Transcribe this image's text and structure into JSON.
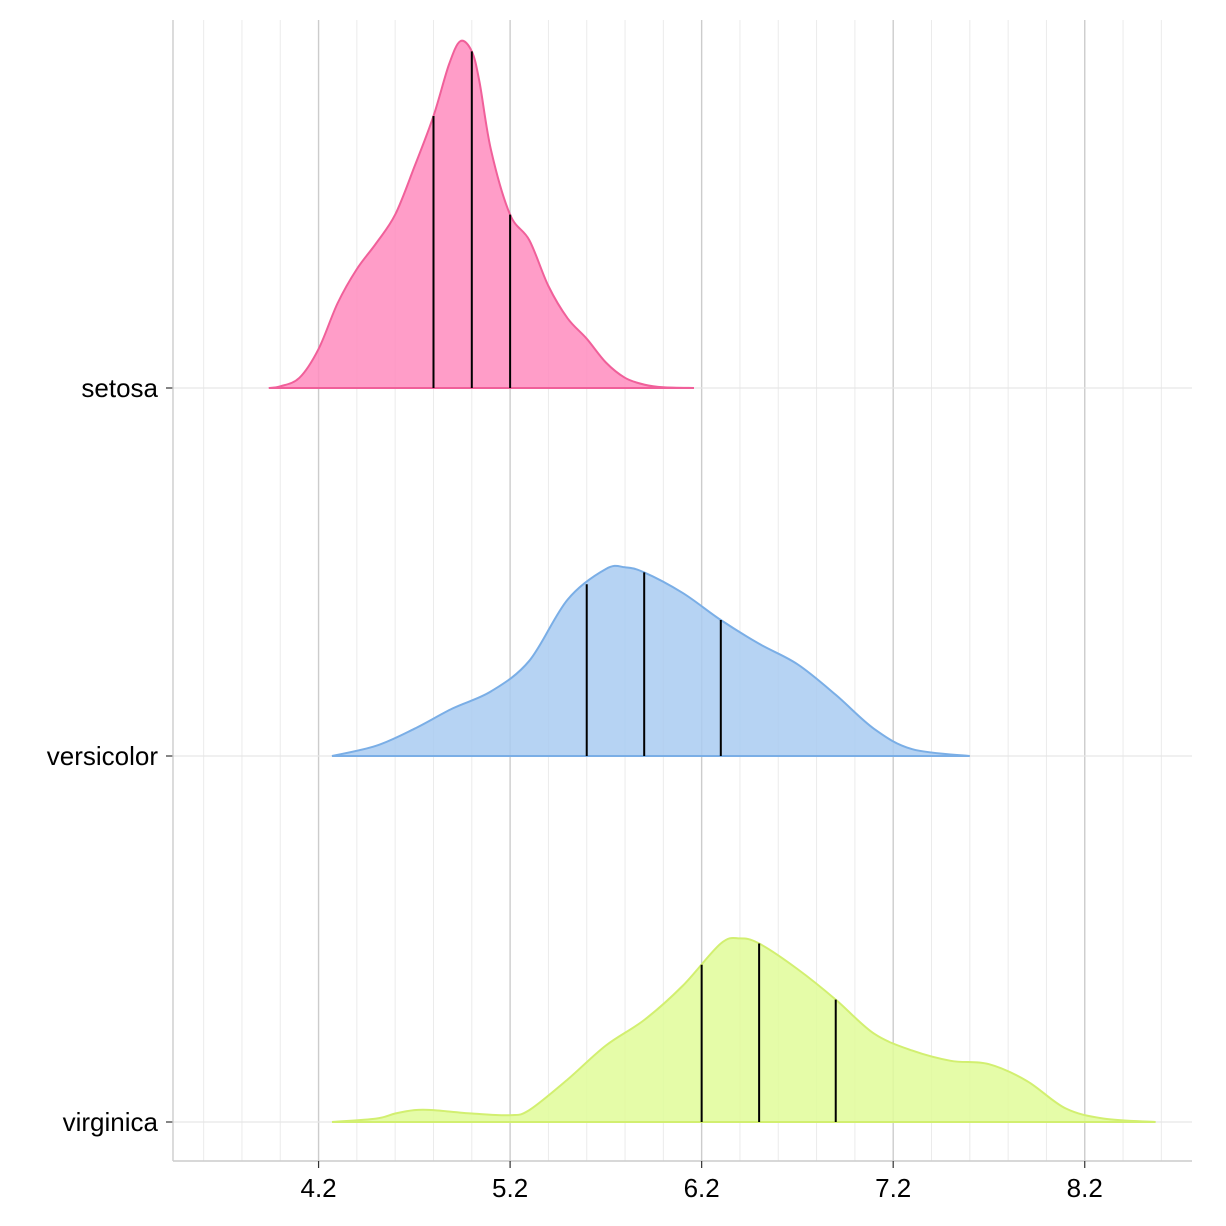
{
  "chart_data": {
    "type": "area",
    "subtype": "ridgeline-density",
    "title": "",
    "xlabel": "",
    "ylabel": "",
    "xlim": [
      3.44,
      8.76
    ],
    "x_ticks": [
      "4.2",
      "5.2",
      "6.2",
      "7.2",
      "8.2"
    ],
    "x_tick_values": [
      4.2,
      5.2,
      6.2,
      7.2,
      8.2
    ],
    "grid": true,
    "categories": [
      "setosa",
      "versicolor",
      "virginica"
    ],
    "series": [
      {
        "name": "setosa",
        "color": "#ff8cbe",
        "stroke": "#f0609a",
        "quantiles": [
          4.8,
          5.0,
          5.2
        ],
        "x": [
          3.94,
          4.0,
          4.1,
          4.2,
          4.3,
          4.4,
          4.5,
          4.6,
          4.7,
          4.8,
          4.88,
          4.94,
          5.0,
          5.04,
          5.1,
          5.2,
          5.3,
          5.4,
          5.5,
          5.6,
          5.7,
          5.8,
          5.9,
          6.0,
          6.16
        ],
        "density": [
          0.0,
          0.01,
          0.06,
          0.23,
          0.5,
          0.7,
          0.85,
          1.02,
          1.3,
          1.6,
          1.9,
          2.04,
          1.98,
          1.8,
          1.4,
          1.02,
          0.87,
          0.6,
          0.41,
          0.29,
          0.15,
          0.06,
          0.02,
          0.004,
          0.0
        ]
      },
      {
        "name": "versicolor",
        "color": "#a9cbf1",
        "stroke": "#7aaee6",
        "quantiles": [
          5.6,
          5.9,
          6.3
        ],
        "x": [
          4.27,
          4.5,
          4.7,
          4.9,
          5.1,
          5.3,
          5.5,
          5.7,
          5.8,
          5.9,
          6.1,
          6.3,
          6.5,
          6.7,
          6.9,
          7.1,
          7.3,
          7.6
        ],
        "density": [
          0.0,
          0.06,
          0.16,
          0.28,
          0.38,
          0.56,
          0.92,
          1.1,
          1.11,
          1.08,
          0.96,
          0.8,
          0.66,
          0.54,
          0.36,
          0.16,
          0.04,
          0.0
        ]
      },
      {
        "name": "virginica",
        "color": "#e1fc99",
        "stroke": "#d2ef70",
        "quantiles": [
          6.2,
          6.5,
          6.9
        ],
        "x": [
          4.27,
          4.5,
          4.6,
          4.7,
          4.8,
          5.0,
          5.2,
          5.3,
          5.5,
          5.7,
          5.9,
          6.1,
          6.3,
          6.4,
          6.5,
          6.7,
          6.9,
          7.1,
          7.3,
          7.5,
          7.7,
          7.9,
          8.1,
          8.3,
          8.57
        ],
        "density": [
          0.0,
          0.02,
          0.05,
          0.07,
          0.07,
          0.05,
          0.04,
          0.07,
          0.25,
          0.45,
          0.6,
          0.8,
          1.05,
          1.08,
          1.05,
          0.9,
          0.72,
          0.52,
          0.42,
          0.36,
          0.34,
          0.24,
          0.08,
          0.02,
          0.0
        ]
      }
    ]
  }
}
